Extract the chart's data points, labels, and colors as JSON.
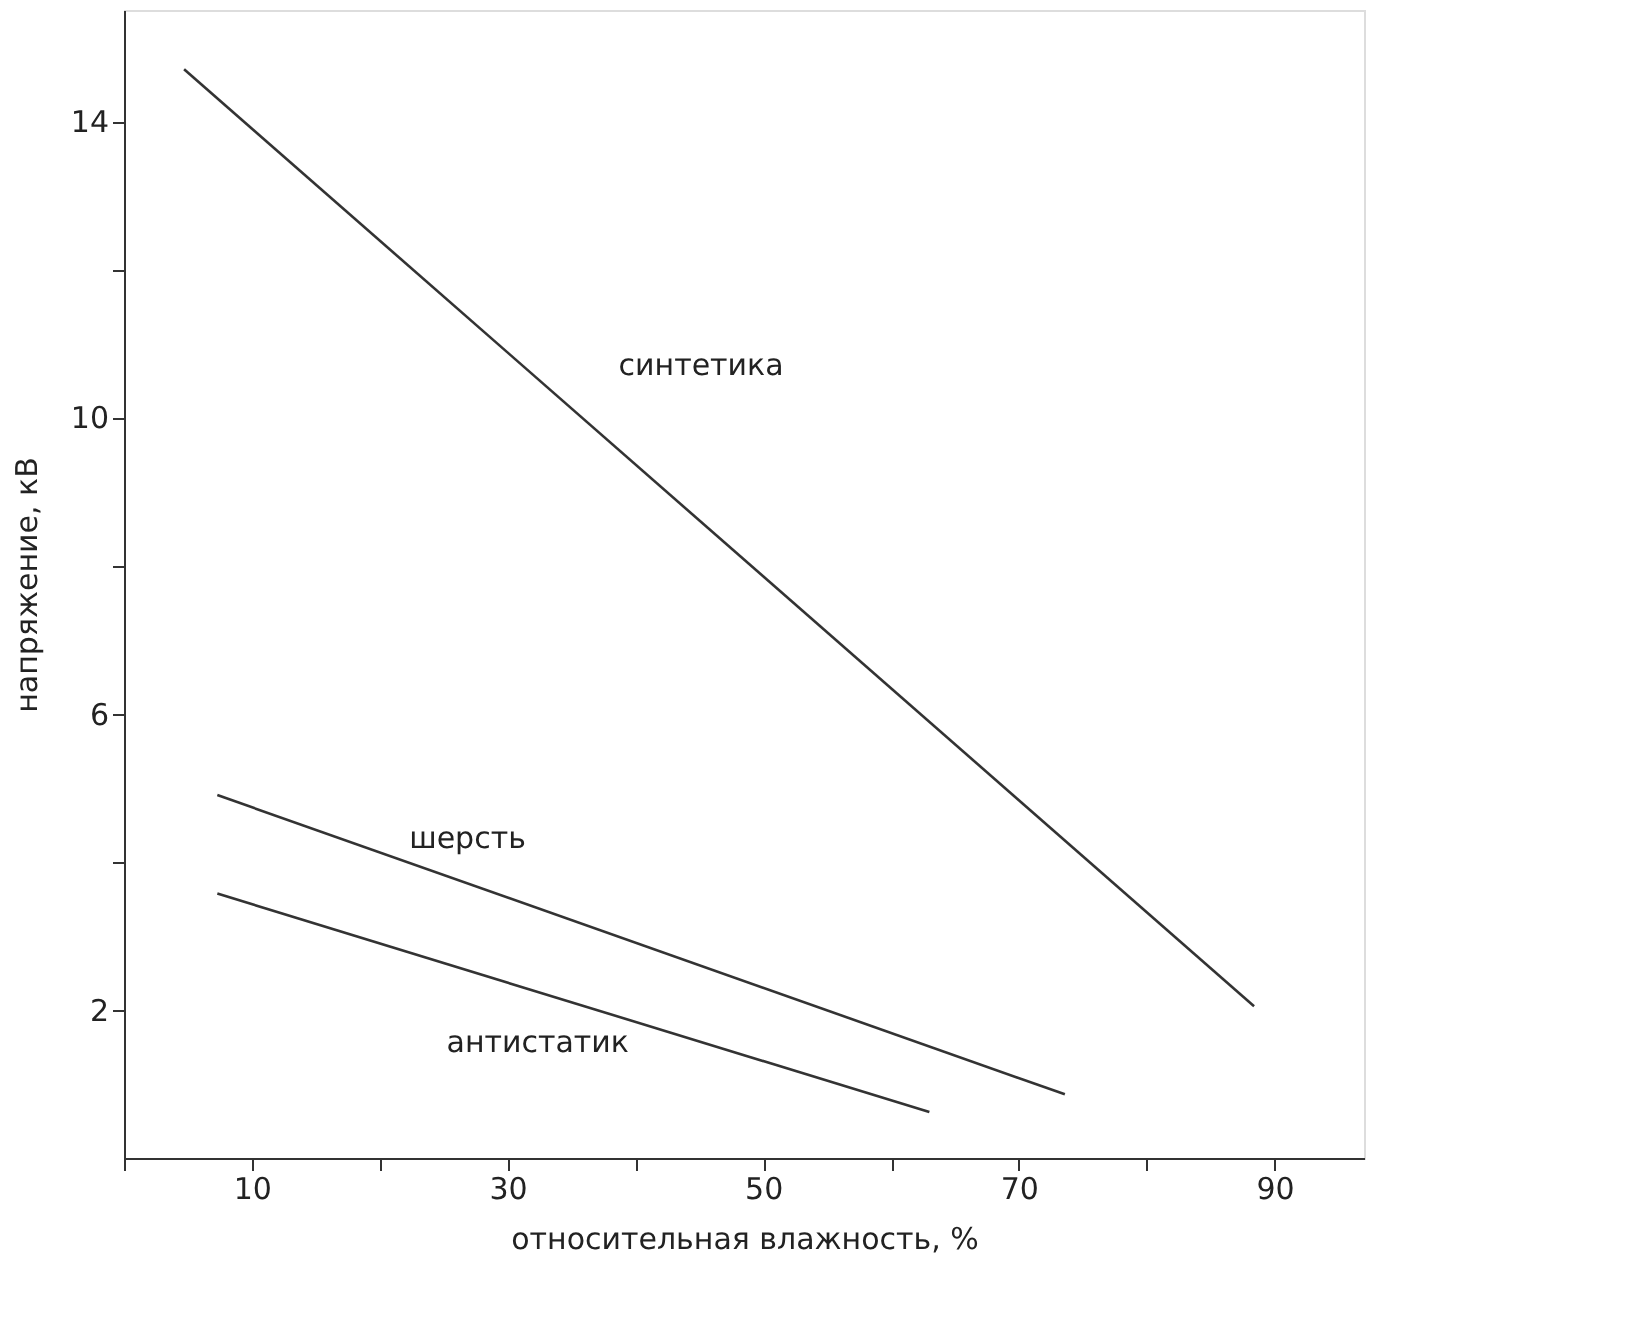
{
  "chart_data": {
    "type": "line",
    "xlabel": "относительная влажность, %",
    "ylabel": "напряжение, кВ",
    "xlim": [
      0,
      97
    ],
    "ylim": [
      0,
      15.5
    ],
    "xticks": [
      {
        "value": 0,
        "label": null
      },
      10,
      {
        "value": 20,
        "label": null
      },
      30,
      {
        "value": 40,
        "label": null
      },
      50,
      {
        "value": 60,
        "label": null
      },
      70,
      {
        "value": 80,
        "label": null
      },
      90
    ],
    "yticks": [
      2,
      {
        "value": 4,
        "label": null
      },
      6,
      {
        "value": 8,
        "label": null
      },
      10,
      {
        "value": 12,
        "label": null
      },
      14
    ],
    "grid": false,
    "marker": "none",
    "line_style": "solid",
    "series": [
      {
        "name": "синтетика",
        "color": "#333333",
        "x": [
          4.7,
          88.4
        ],
        "values": [
          14.7,
          2.05
        ]
      },
      {
        "name": "шерсть",
        "color": "#333333",
        "x": [
          7.3,
          73.6
        ],
        "values": [
          4.9,
          0.86
        ]
      },
      {
        "name": "антистатик",
        "color": "#333333",
        "x": [
          7.3,
          63
        ],
        "values": [
          3.57,
          0.62
        ]
      }
    ]
  }
}
